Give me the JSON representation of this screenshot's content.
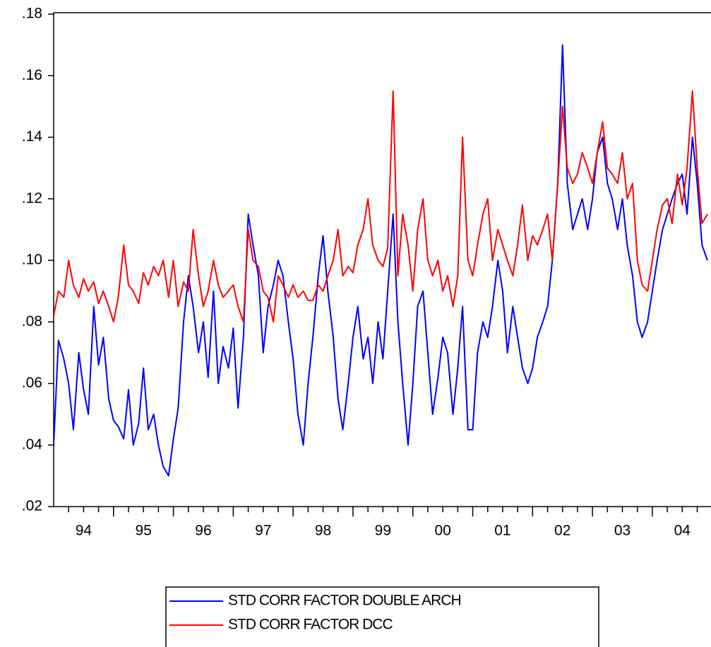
{
  "chart_data": {
    "type": "line",
    "x": [
      1994.0,
      1994.08,
      1994.17,
      1994.25,
      1994.33,
      1994.42,
      1994.5,
      1994.58,
      1994.67,
      1994.75,
      1994.83,
      1994.92,
      1995.0,
      1995.08,
      1995.17,
      1995.25,
      1995.33,
      1995.42,
      1995.5,
      1995.58,
      1995.67,
      1995.75,
      1995.83,
      1995.92,
      1996.0,
      1996.08,
      1996.17,
      1996.25,
      1996.33,
      1996.42,
      1996.5,
      1996.58,
      1996.67,
      1996.75,
      1996.83,
      1996.92,
      1997.0,
      1997.08,
      1997.17,
      1997.25,
      1997.33,
      1997.42,
      1997.5,
      1997.58,
      1997.67,
      1997.75,
      1997.83,
      1997.92,
      1998.0,
      1998.08,
      1998.17,
      1998.25,
      1998.33,
      1998.42,
      1998.5,
      1998.58,
      1998.67,
      1998.75,
      1998.83,
      1998.92,
      1999.0,
      1999.08,
      1999.17,
      1999.25,
      1999.33,
      1999.42,
      1999.5,
      1999.58,
      1999.67,
      1999.75,
      1999.83,
      1999.92,
      2000.0,
      2000.08,
      2000.17,
      2000.25,
      2000.33,
      2000.42,
      2000.5,
      2000.58,
      2000.67,
      2000.75,
      2000.83,
      2000.92,
      2001.0,
      2001.08,
      2001.17,
      2001.25,
      2001.33,
      2001.42,
      2001.5,
      2001.58,
      2001.67,
      2001.75,
      2001.83,
      2001.92,
      2002.0,
      2002.08,
      2002.17,
      2002.25,
      2002.33,
      2002.42,
      2002.5,
      2002.58,
      2002.67,
      2002.75,
      2002.83,
      2002.92,
      2003.0,
      2003.08,
      2003.17,
      2003.25,
      2003.33,
      2003.42,
      2003.5,
      2003.58,
      2003.67,
      2003.75,
      2003.83,
      2003.92,
      2004.0,
      2004.08,
      2004.17,
      2004.25,
      2004.33,
      2004.42,
      2004.5,
      2004.58,
      2004.67,
      2004.75,
      2004.83,
      2004.92
    ],
    "series": [
      {
        "name": "STD CORR FACTOR DOUBLE ARCH",
        "color": "#0000ff",
        "values": [
          0.04,
          0.074,
          0.068,
          0.06,
          0.045,
          0.07,
          0.058,
          0.05,
          0.085,
          0.066,
          0.075,
          0.055,
          0.048,
          0.046,
          0.042,
          0.058,
          0.04,
          0.047,
          0.065,
          0.045,
          0.05,
          0.04,
          0.033,
          0.03,
          0.042,
          0.052,
          0.08,
          0.095,
          0.085,
          0.07,
          0.08,
          0.062,
          0.09,
          0.06,
          0.072,
          0.065,
          0.078,
          0.052,
          0.075,
          0.115,
          0.105,
          0.095,
          0.07,
          0.085,
          0.092,
          0.1,
          0.095,
          0.08,
          0.068,
          0.05,
          0.04,
          0.06,
          0.075,
          0.095,
          0.108,
          0.09,
          0.075,
          0.055,
          0.045,
          0.06,
          0.075,
          0.085,
          0.068,
          0.075,
          0.06,
          0.08,
          0.068,
          0.09,
          0.115,
          0.08,
          0.06,
          0.04,
          0.06,
          0.085,
          0.09,
          0.07,
          0.05,
          0.062,
          0.075,
          0.07,
          0.05,
          0.065,
          0.085,
          0.045,
          0.045,
          0.07,
          0.08,
          0.075,
          0.085,
          0.1,
          0.09,
          0.07,
          0.085,
          0.075,
          0.065,
          0.06,
          0.065,
          0.075,
          0.08,
          0.085,
          0.1,
          0.125,
          0.17,
          0.125,
          0.11,
          0.115,
          0.12,
          0.11,
          0.12,
          0.135,
          0.14,
          0.125,
          0.12,
          0.11,
          0.12,
          0.105,
          0.095,
          0.08,
          0.075,
          0.08,
          0.09,
          0.1,
          0.11,
          0.115,
          0.12,
          0.125,
          0.128,
          0.115,
          0.14,
          0.125,
          0.105,
          0.1
        ]
      },
      {
        "name": "STD CORR FACTOR DCC",
        "color": "#ff0000",
        "values": [
          0.082,
          0.09,
          0.088,
          0.1,
          0.092,
          0.088,
          0.094,
          0.09,
          0.093,
          0.086,
          0.09,
          0.085,
          0.08,
          0.088,
          0.105,
          0.092,
          0.09,
          0.086,
          0.096,
          0.092,
          0.098,
          0.095,
          0.1,
          0.088,
          0.1,
          0.085,
          0.093,
          0.09,
          0.11,
          0.095,
          0.085,
          0.09,
          0.1,
          0.092,
          0.088,
          0.09,
          0.092,
          0.085,
          0.08,
          0.11,
          0.1,
          0.098,
          0.09,
          0.088,
          0.08,
          0.095,
          0.092,
          0.088,
          0.092,
          0.088,
          0.09,
          0.087,
          0.087,
          0.092,
          0.09,
          0.095,
          0.1,
          0.11,
          0.095,
          0.098,
          0.096,
          0.105,
          0.11,
          0.12,
          0.105,
          0.1,
          0.098,
          0.104,
          0.155,
          0.095,
          0.115,
          0.105,
          0.09,
          0.11,
          0.12,
          0.1,
          0.095,
          0.1,
          0.09,
          0.095,
          0.085,
          0.095,
          0.14,
          0.1,
          0.095,
          0.105,
          0.115,
          0.12,
          0.1,
          0.11,
          0.105,
          0.1,
          0.095,
          0.105,
          0.118,
          0.1,
          0.108,
          0.105,
          0.11,
          0.115,
          0.1,
          0.125,
          0.15,
          0.13,
          0.125,
          0.128,
          0.135,
          0.13,
          0.125,
          0.135,
          0.145,
          0.13,
          0.128,
          0.125,
          0.135,
          0.12,
          0.125,
          0.1,
          0.092,
          0.09,
          0.1,
          0.11,
          0.118,
          0.12,
          0.112,
          0.128,
          0.118,
          0.13,
          0.155,
          0.13,
          0.112,
          0.115
        ]
      }
    ],
    "xlim": [
      1994.0,
      2004.98
    ],
    "xticks": [
      {
        "value": 1994.5,
        "label": "94"
      },
      {
        "value": 1995.5,
        "label": "95"
      },
      {
        "value": 1996.5,
        "label": "96"
      },
      {
        "value": 1997.5,
        "label": "97"
      },
      {
        "value": 1998.5,
        "label": "98"
      },
      {
        "value": 1999.5,
        "label": "99"
      },
      {
        "value": 2000.5,
        "label": "00"
      },
      {
        "value": 2001.5,
        "label": "01"
      },
      {
        "value": 2002.5,
        "label": "02"
      },
      {
        "value": 2003.5,
        "label": "03"
      },
      {
        "value": 2004.5,
        "label": "04"
      }
    ],
    "ylim": [
      0.02,
      0.18
    ],
    "yticks": [
      {
        "value": 0.02,
        "label": ".02"
      },
      {
        "value": 0.04,
        "label": ".04"
      },
      {
        "value": 0.06,
        "label": ".06"
      },
      {
        "value": 0.08,
        "label": ".08"
      },
      {
        "value": 0.1,
        "label": ".10"
      },
      {
        "value": 0.12,
        "label": ".12"
      },
      {
        "value": 0.14,
        "label": ".14"
      },
      {
        "value": 0.16,
        "label": ".16"
      },
      {
        "value": 0.18,
        "label": ".18"
      }
    ],
    "grid": false
  }
}
